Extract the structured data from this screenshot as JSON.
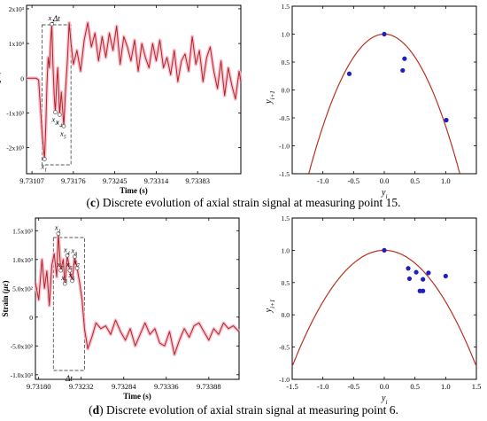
{
  "captions": [
    {
      "letter": "c",
      "text": "Discrete evolution of axial strain signal at measuring point 15."
    },
    {
      "letter": "d",
      "text": "Discrete evolution of axial strain signal at measuring point 6."
    }
  ],
  "colors": {
    "signal": "#b22222",
    "envelope": "#f4b6c8",
    "parabola": "#b8321f",
    "points": "#1f1fbf",
    "box": "#555555"
  },
  "chart_data": [
    {
      "id": "c-left",
      "type": "line",
      "xlabel": "Time (s)",
      "ylabel": "Strain (με)",
      "ylabel_parts": [
        "Strain (",
        "με",
        ")"
      ],
      "xlim": [
        9.73098,
        9.73455
      ],
      "ylim": [
        -2.75,
        2.1
      ],
      "x_ticks": [
        9.73107,
        9.73176,
        9.73245,
        9.73314,
        9.73383
      ],
      "x_tick_labels": [
        "9.73107",
        "9.73176",
        "9.73245",
        "9.73314",
        "9.73383"
      ],
      "y_ticks": [
        2,
        1,
        0,
        -1,
        -2
      ],
      "y_tick_labels": [
        "2x10³",
        "1x10³",
        "0",
        "-1x10³",
        "-2x10³"
      ],
      "y_unit_note": "values in 10³ με",
      "window_label": "Δt",
      "window_range": [
        9.73124,
        9.73172
      ],
      "markers": [
        {
          "label": "x1",
          "sub": "1",
          "x": 9.73128,
          "y": -2.33
        },
        {
          "label": "x2",
          "sub": "2",
          "x": 9.7314,
          "y": 1.56
        },
        {
          "label": "x3",
          "sub": "3",
          "x": 9.73146,
          "y": -0.98
        },
        {
          "label": "x4",
          "sub": "4",
          "x": 9.73153,
          "y": -1.05
        },
        {
          "label": "x5",
          "sub": "5",
          "x": 9.7316,
          "y": -1.38
        }
      ],
      "series": [
        {
          "x": [
            9.73098,
            9.73104,
            9.7311,
            9.73114,
            9.73118,
            9.73121,
            9.73124,
            9.73126,
            9.73128,
            9.7313,
            9.73132,
            9.73134,
            9.73136,
            9.73138,
            9.7314,
            9.73142,
            9.73144,
            9.73146,
            9.73148,
            9.7315,
            9.73153,
            9.73156,
            9.73158,
            9.7316,
            9.73163,
            9.73166,
            9.73169,
            9.73172,
            9.73176,
            9.73182,
            9.73188,
            9.73194,
            9.732,
            9.73206,
            9.73212,
            9.73218,
            9.73224,
            9.7323,
            9.73236,
            9.73242,
            9.73248,
            9.73254,
            9.7326,
            9.73266,
            9.73272,
            9.73278,
            9.73284,
            9.7329,
            9.73296,
            9.73302,
            9.73308,
            9.73314,
            9.7332,
            9.73326,
            9.73332,
            9.73338,
            9.73344,
            9.7335,
            9.73356,
            9.73362,
            9.73368,
            9.73374,
            9.7338,
            9.73386,
            9.73392,
            9.73398,
            9.73404,
            9.7341,
            9.73416,
            9.73422,
            9.73428,
            9.73434,
            9.7344,
            9.73446,
            9.73452,
            9.73455
          ],
          "y": [
            0,
            0,
            0,
            0,
            -0.05,
            -0.8,
            -1.6,
            -2.0,
            -2.33,
            -1.4,
            -0.2,
            0.6,
            0.3,
            1.0,
            1.56,
            0.4,
            -0.5,
            -0.98,
            -0.2,
            0.3,
            -1.05,
            -0.4,
            -0.9,
            -1.38,
            -0.3,
            0.5,
            1.6,
            1.0,
            0.4,
            0.8,
            0.2,
            1.1,
            1.6,
            0.9,
            1.3,
            0.5,
            1.2,
            0.6,
            1.3,
            0.8,
            1.5,
            0.4,
            1.2,
            0.9,
            0.5,
            1.1,
            0.2,
            1.0,
            0.6,
            0.3,
            1.0,
            0.5,
            1.1,
            0.3,
            0.6,
            0.1,
            0.8,
            -0.1,
            0.5,
            0.7,
            0.2,
            1.2,
            0.4,
            0.8,
            -0.1,
            0.6,
            0.9,
            0.2,
            -0.3,
            0.5,
            -0.5,
            0.3,
            -0.2,
            -0.6,
            0.2,
            -0.1
          ]
        }
      ]
    },
    {
      "id": "c-right",
      "type": "scatter",
      "xlabel": "y",
      "xlabel_sub": "i",
      "ylabel": "y",
      "ylabel_sub": "i+1",
      "xlim": [
        -1.5,
        1.5
      ],
      "ylim": [
        -1.5,
        1.5
      ],
      "x_ticks": [
        -1.0,
        -0.5,
        0.0,
        0.5,
        1.0
      ],
      "x_tick_labels": [
        "-1.0",
        "-0.5",
        "0.0",
        "0.5",
        "1.0"
      ],
      "y_ticks": [
        1.5,
        1.0,
        0.5,
        0.0,
        -0.5,
        -1.0,
        -1.5
      ],
      "y_tick_labels": [
        "1.5",
        "1.0",
        "0.5",
        "0.0",
        "-0.5",
        "-1.0",
        "-1.5"
      ],
      "curve": "parabola y = 1 - 1.65x²",
      "curve_coef": 1.65,
      "points": [
        {
          "x": -0.57,
          "y": 0.29
        },
        {
          "x": 0.0,
          "y": 1.0
        },
        {
          "x": 0.3,
          "y": 0.35
        },
        {
          "x": 0.33,
          "y": 0.56
        },
        {
          "x": 1.01,
          "y": -0.54
        }
      ]
    },
    {
      "id": "d-left",
      "type": "line",
      "xlabel": "Time (s)",
      "ylabel": "Strain (με)",
      "ylabel_parts": [
        "Strain (",
        "με",
        ")"
      ],
      "xlim": [
        9.73176,
        9.73425
      ],
      "ylim": [
        -1.08,
        1.72
      ],
      "x_ticks": [
        9.7318,
        9.73232,
        9.73284,
        9.73336,
        9.73388
      ],
      "x_tick_labels": [
        "9.73180",
        "9.73232",
        "9.73284",
        "9.73336",
        "9.73388"
      ],
      "y_ticks": [
        1.5,
        1.0,
        0.5,
        0,
        -0.5,
        -1.0
      ],
      "y_tick_labels": [
        "1.5x10³",
        "1.0x10³",
        "5.0x10²",
        "0",
        "-5.0x10²",
        "-1.0x10³"
      ],
      "y_unit_note": "values in 10³ με",
      "window_label": "Δt",
      "window_range": [
        9.73198,
        9.73236
      ],
      "markers": [
        {
          "label": "x1",
          "sub": "1",
          "x": 9.73204,
          "y": 1.45
        },
        {
          "label": "x2",
          "sub": "2",
          "x": 9.73207,
          "y": 0.81
        },
        {
          "label": "x3",
          "sub": "3",
          "x": 9.73212,
          "y": 0.58
        },
        {
          "label": "x4",
          "sub": "4",
          "x": 9.73215,
          "y": 1.07
        },
        {
          "label": "x5",
          "sub": "5",
          "x": 9.73218,
          "y": 0.81
        },
        {
          "label": "x6",
          "sub": "6",
          "x": 9.73221,
          "y": 0.63
        },
        {
          "label": "x7",
          "sub": "7",
          "x": 9.73227,
          "y": 0.85
        },
        {
          "label": "x8",
          "sub": "8",
          "x": 9.73224,
          "y": 1.05
        }
      ],
      "series": [
        {
          "x": [
            9.73176,
            9.7318,
            9.73184,
            9.73187,
            9.7319,
            9.73193,
            9.73196,
            9.73199,
            9.73202,
            9.73204,
            9.73207,
            9.7321,
            9.73212,
            9.73215,
            9.73218,
            9.73221,
            9.73224,
            9.73227,
            9.7323,
            9.73233,
            9.73236,
            9.7324,
            9.73245,
            9.7325,
            9.73256,
            9.73262,
            9.73268,
            9.73274,
            9.7328,
            9.73286,
            9.73292,
            9.73298,
            9.73304,
            9.7331,
            9.73316,
            9.73322,
            9.73328,
            9.73334,
            9.7334,
            9.73346,
            9.73352,
            9.73358,
            9.73364,
            9.7337,
            9.73376,
            9.73382,
            9.73388,
            9.73394,
            9.734,
            9.73406,
            9.73412,
            9.73418,
            9.73425
          ],
          "y": [
            0.6,
            0.3,
            1.0,
            0.5,
            0.8,
            0.2,
            0.9,
            1.1,
            0.7,
            1.45,
            0.81,
            1.0,
            0.58,
            1.07,
            0.81,
            0.63,
            1.05,
            0.85,
            0.6,
            0.3,
            -0.2,
            -0.55,
            -0.35,
            -0.1,
            -0.2,
            -0.15,
            -0.3,
            -0.05,
            -0.25,
            -0.4,
            -0.2,
            -0.5,
            -0.3,
            -0.1,
            -0.3,
            -0.2,
            -0.45,
            -0.5,
            -0.25,
            -0.65,
            -0.4,
            -0.2,
            -0.35,
            -0.15,
            -0.1,
            -0.25,
            -0.4,
            -0.2,
            -0.3,
            -0.1,
            -0.2,
            -0.15,
            -0.25
          ]
        }
      ]
    },
    {
      "id": "d-right",
      "type": "scatter",
      "xlabel": "y",
      "xlabel_sub": "i",
      "ylabel": "y",
      "ylabel_sub": "i+1",
      "xlim": [
        -1.5,
        1.5
      ],
      "ylim": [
        -1.0,
        1.5
      ],
      "x_ticks": [
        -1.5,
        -1.0,
        -0.5,
        0.0,
        0.5,
        1.0,
        1.5
      ],
      "x_tick_labels": [
        "-1.5",
        "-1.0",
        "-0.5",
        "0.0",
        "0.5",
        "1.0",
        "1.5"
      ],
      "y_ticks": [
        1.5,
        1.0,
        0.5,
        0.0,
        -0.5,
        -1.0
      ],
      "y_tick_labels": [
        "1.5",
        "1.0",
        "0.5",
        "0.0",
        "-0.5",
        "-1.0"
      ],
      "curve": "parabola y = 1 - 0.8x²",
      "curve_coef": 0.8,
      "points": [
        {
          "x": 0.0,
          "y": 1.0
        },
        {
          "x": 0.39,
          "y": 0.72
        },
        {
          "x": 0.41,
          "y": 0.56
        },
        {
          "x": 0.52,
          "y": 0.66
        },
        {
          "x": 0.58,
          "y": 0.37
        },
        {
          "x": 0.63,
          "y": 0.37
        },
        {
          "x": 0.63,
          "y": 0.55
        },
        {
          "x": 0.72,
          "y": 0.65
        },
        {
          "x": 1.0,
          "y": 0.6
        }
      ]
    }
  ]
}
